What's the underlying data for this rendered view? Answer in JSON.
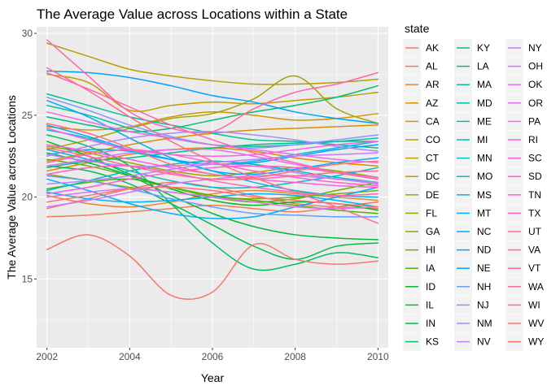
{
  "chart_data": {
    "type": "line",
    "title": "The Average Value across Locations within a State",
    "xlabel": "Year",
    "ylabel": "The Average Value across Locations",
    "xlim": [
      2001.75,
      2010.25
    ],
    "ylim": [
      10.8,
      30.4
    ],
    "x_ticks": [
      2002,
      2004,
      2006,
      2008,
      2010
    ],
    "y_ticks": [
      15,
      20,
      25,
      30
    ],
    "grid": true,
    "legend_title": "state",
    "legend_placement": "right",
    "x": [
      2002,
      2003,
      2004,
      2005,
      2006,
      2007,
      2008,
      2009,
      2010
    ],
    "series": [
      {
        "name": "AK",
        "color": "#F8766D",
        "values": [
          19.3,
          19.9,
          20.5,
          20.9,
          20.6,
          20.1,
          19.6,
          19.4,
          19.3
        ]
      },
      {
        "name": "AL",
        "color": "#F27D52",
        "values": [
          18.8,
          18.9,
          19.1,
          19.3,
          19.5,
          19.3,
          19.1,
          19.4,
          19.7
        ]
      },
      {
        "name": "AR",
        "color": "#EA8331",
        "values": [
          20.1,
          19.6,
          19.4,
          19.7,
          20.2,
          20.4,
          20.2,
          20.0,
          19.8
        ]
      },
      {
        "name": "AZ",
        "color": "#E18A00",
        "values": [
          21.6,
          22.1,
          22.6,
          22.9,
          23.0,
          22.8,
          22.4,
          22.1,
          21.9
        ]
      },
      {
        "name": "CA",
        "color": "#D89000",
        "values": [
          22.2,
          22.7,
          23.2,
          23.6,
          23.9,
          24.1,
          24.2,
          24.3,
          24.4
        ]
      },
      {
        "name": "CO",
        "color": "#CD9600",
        "values": [
          24.3,
          24.1,
          24.3,
          24.9,
          25.2,
          25.0,
          24.7,
          24.8,
          25.1
        ]
      },
      {
        "name": "CT",
        "color": "#C19C00",
        "values": [
          27.5,
          27.0,
          25.3,
          25.6,
          25.8,
          25.7,
          25.9,
          26.1,
          26.4
        ]
      },
      {
        "name": "DC",
        "color": "#B3A000",
        "values": [
          29.4,
          28.6,
          27.8,
          27.4,
          27.1,
          26.9,
          26.9,
          27.0,
          27.2
        ]
      },
      {
        "name": "DE",
        "color": "#A5A400",
        "values": [
          22.9,
          23.5,
          24.2,
          24.8,
          25.1,
          26.0,
          27.4,
          25.4,
          24.5
        ]
      },
      {
        "name": "FL",
        "color": "#95A900",
        "values": [
          23.1,
          22.7,
          22.1,
          21.6,
          21.3,
          21.5,
          21.8,
          21.6,
          21.2
        ]
      },
      {
        "name": "GA",
        "color": "#82AD00",
        "values": [
          21.4,
          21.0,
          20.6,
          20.3,
          20.0,
          19.9,
          20.0,
          20.2,
          20.4
        ]
      },
      {
        "name": "HI",
        "color": "#6BB100",
        "values": [
          22.3,
          21.9,
          21.3,
          20.6,
          20.0,
          19.7,
          19.9,
          20.4,
          20.9
        ]
      },
      {
        "name": "IA",
        "color": "#4FB400",
        "values": [
          20.5,
          20.9,
          21.1,
          20.6,
          20.1,
          19.8,
          19.5,
          19.2,
          19.0
        ]
      },
      {
        "name": "ID",
        "color": "#00B81F",
        "values": [
          23.4,
          22.5,
          21.4,
          20.5,
          19.8,
          19.5,
          19.7,
          19.6,
          19.2
        ]
      },
      {
        "name": "IL",
        "color": "#00BA38",
        "values": [
          22.7,
          22.1,
          21.3,
          20.1,
          19.0,
          18.2,
          17.7,
          17.5,
          17.4
        ]
      },
      {
        "name": "IN",
        "color": "#00BC4D",
        "values": [
          21.9,
          21.6,
          20.8,
          19.6,
          18.3,
          17.0,
          16.2,
          17.0,
          17.2
        ]
      },
      {
        "name": "KS",
        "color": "#00BE61",
        "values": [
          23.8,
          23.1,
          21.9,
          19.6,
          17.2,
          15.6,
          15.9,
          16.6,
          16.3
        ]
      },
      {
        "name": "KY",
        "color": "#00BF74",
        "values": [
          24.9,
          24.4,
          24.0,
          24.2,
          24.7,
          25.2,
          25.6,
          26.1,
          26.8
        ]
      },
      {
        "name": "LA",
        "color": "#00C086",
        "values": [
          21.8,
          22.2,
          22.4,
          22.7,
          23.0,
          23.2,
          23.3,
          23.4,
          23.4
        ]
      },
      {
        "name": "MA",
        "color": "#00C098",
        "values": [
          26.3,
          25.6,
          24.9,
          24.4,
          23.9,
          23.5,
          23.4,
          23.2,
          23.0
        ]
      },
      {
        "name": "MD",
        "color": "#00C0A9",
        "values": [
          25.6,
          25.0,
          24.2,
          23.6,
          23.2,
          23.1,
          23.2,
          23.4,
          23.6
        ]
      },
      {
        "name": "ME",
        "color": "#00BFB9",
        "values": [
          20.4,
          21.0,
          21.6,
          22.0,
          22.2,
          22.0,
          21.6,
          21.2,
          20.9
        ]
      },
      {
        "name": "MI",
        "color": "#00BDC8",
        "values": [
          22.9,
          22.3,
          21.6,
          21.0,
          20.6,
          20.6,
          20.9,
          21.3,
          21.8
        ]
      },
      {
        "name": "MN",
        "color": "#00BBD6",
        "values": [
          24.1,
          23.6,
          22.8,
          22.3,
          22.0,
          22.2,
          22.6,
          23.0,
          23.4
        ]
      },
      {
        "name": "MO",
        "color": "#00B7E4",
        "values": [
          22.6,
          22.9,
          22.8,
          22.3,
          21.6,
          20.9,
          20.4,
          20.1,
          20.0
        ]
      },
      {
        "name": "MS",
        "color": "#00B3F0",
        "values": [
          20.3,
          19.9,
          19.7,
          19.8,
          20.0,
          20.2,
          20.1,
          19.8,
          19.4
        ]
      },
      {
        "name": "MT",
        "color": "#00AEFA",
        "values": [
          21.1,
          20.4,
          19.6,
          19.0,
          18.7,
          18.8,
          19.4,
          20.0,
          20.6
        ]
      },
      {
        "name": "NC",
        "color": "#00A9FF",
        "values": [
          25.9,
          24.9,
          23.6,
          22.4,
          21.6,
          21.4,
          21.7,
          22.1,
          22.4
        ]
      },
      {
        "name": "ND",
        "color": "#00A5FF",
        "values": [
          24.4,
          23.7,
          22.9,
          22.3,
          22.0,
          22.1,
          22.5,
          22.9,
          23.2
        ]
      },
      {
        "name": "NE",
        "color": "#00A0FF",
        "values": [
          27.7,
          27.6,
          27.3,
          26.8,
          26.2,
          25.8,
          25.2,
          24.8,
          24.5
        ]
      },
      {
        "name": "NH",
        "color": "#619CFF",
        "values": [
          21.3,
          21.0,
          20.5,
          19.9,
          19.4,
          19.0,
          18.9,
          18.8,
          18.8
        ]
      },
      {
        "name": "NJ",
        "color": "#8B93FF",
        "values": [
          26.1,
          25.3,
          24.4,
          23.7,
          23.2,
          23.0,
          23.2,
          23.5,
          23.8
        ]
      },
      {
        "name": "NM",
        "color": "#A58AFF",
        "values": [
          22.5,
          23.1,
          23.6,
          23.9,
          24.0,
          23.8,
          23.5,
          23.1,
          22.8
        ]
      },
      {
        "name": "NV",
        "color": "#B983FF",
        "values": [
          20.8,
          21.0,
          21.3,
          21.7,
          22.0,
          21.9,
          21.5,
          21.1,
          20.9
        ]
      },
      {
        "name": "NY",
        "color": "#C77CFF",
        "values": [
          22.6,
          22.2,
          21.9,
          21.9,
          22.1,
          22.3,
          22.5,
          22.6,
          22.7
        ]
      },
      {
        "name": "OH",
        "color": "#D474FF",
        "values": [
          19.4,
          19.8,
          20.3,
          20.8,
          21.1,
          21.3,
          21.3,
          21.1,
          20.8
        ]
      },
      {
        "name": "OK",
        "color": "#DF70F8",
        "values": [
          20.0,
          20.3,
          20.5,
          20.3,
          20.0,
          19.7,
          19.4,
          19.3,
          19.4
        ]
      },
      {
        "name": "OR",
        "color": "#E76BF3",
        "values": [
          21.9,
          22.3,
          22.7,
          22.9,
          22.9,
          22.5,
          22.0,
          21.5,
          21.1
        ]
      },
      {
        "name": "PA",
        "color": "#EF67EB",
        "values": [
          25.2,
          24.6,
          24.0,
          23.6,
          23.2,
          22.9,
          22.6,
          22.3,
          22.1
        ]
      },
      {
        "name": "RI",
        "color": "#F564E3",
        "values": [
          24.2,
          23.5,
          22.9,
          22.6,
          22.5,
          22.6,
          22.9,
          23.2,
          23.4
        ]
      },
      {
        "name": "SC",
        "color": "#FA62DA",
        "values": [
          23.2,
          22.8,
          22.3,
          21.8,
          21.4,
          21.1,
          20.9,
          20.7,
          20.6
        ]
      },
      {
        "name": "SD",
        "color": "#FD61D1",
        "values": [
          20.2,
          20.6,
          21.1,
          21.5,
          21.8,
          21.9,
          21.8,
          21.5,
          21.2
        ]
      },
      {
        "name": "TN",
        "color": "#FF61C7",
        "values": [
          22.1,
          22.6,
          22.9,
          22.6,
          22.1,
          21.6,
          21.2,
          20.9,
          20.7
        ]
      },
      {
        "name": "TX",
        "color": "#FF62BC",
        "values": [
          21.4,
          21.8,
          21.9,
          21.5,
          21.0,
          20.6,
          20.3,
          20.1,
          20.2
        ]
      },
      {
        "name": "UT",
        "color": "#FF64B0",
        "values": [
          29.6,
          27.4,
          25.2,
          24.2,
          24.0,
          25.4,
          26.4,
          26.9,
          27.6
        ]
      },
      {
        "name": "VA",
        "color": "#FF67A4",
        "values": [
          27.6,
          26.6,
          25.5,
          24.4,
          23.5,
          22.7,
          22.1,
          21.5,
          21.1
        ]
      },
      {
        "name": "VT",
        "color": "#FF6B96",
        "values": [
          23.0,
          22.5,
          21.9,
          21.4,
          21.1,
          21.1,
          21.3,
          21.5,
          21.6
        ]
      },
      {
        "name": "WA",
        "color": "#FF6C91",
        "values": [
          27.9,
          26.5,
          24.9,
          23.4,
          22.2,
          21.2,
          20.3,
          19.4,
          18.4
        ]
      },
      {
        "name": "WI",
        "color": "#FD6F86",
        "values": [
          24.5,
          23.9,
          23.0,
          22.0,
          21.4,
          21.2,
          21.6,
          22.0,
          22.2
        ]
      },
      {
        "name": "WV",
        "color": "#FB727A",
        "values": [
          19.7,
          20.1,
          20.5,
          20.6,
          20.4,
          20.0,
          19.8,
          19.6,
          19.4
        ]
      },
      {
        "name": "WY",
        "color": "#F8766D",
        "values": [
          16.8,
          17.7,
          16.4,
          14.0,
          14.2,
          17.1,
          16.2,
          15.9,
          16.1
        ]
      }
    ]
  }
}
